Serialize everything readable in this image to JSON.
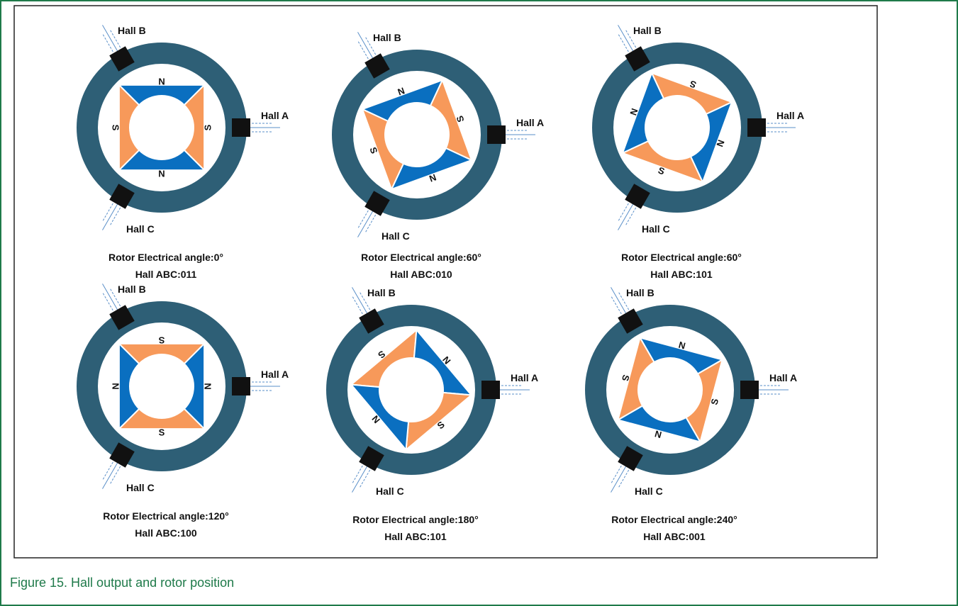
{
  "caption": "Figure 15. Hall output and rotor position",
  "panels": [
    {
      "hall_a": "Hall A",
      "hall_b": "Hall B",
      "hall_c": "Hall C",
      "angle": "Rotor Electrical angle:0°",
      "abc": "Hall ABC:011",
      "poles": [
        "N",
        "S",
        "N",
        "S"
      ]
    },
    {
      "hall_a": "Hall A",
      "hall_b": "Hall B",
      "hall_c": "Hall C",
      "angle": "Rotor Electrical angle:60°",
      "abc": "Hall ABC:010",
      "poles": [
        "N",
        "S",
        "N",
        "S"
      ]
    },
    {
      "hall_a": "Hall A",
      "hall_b": "Hall B",
      "hall_c": "Hall C",
      "angle": "Rotor Electrical angle:60°",
      "abc": "Hall ABC:101",
      "poles": [
        "S",
        "N",
        "S",
        "N"
      ]
    },
    {
      "hall_a": "Hall A",
      "hall_b": "Hall B",
      "hall_c": "Hall C",
      "angle": "Rotor Electrical angle:120°",
      "abc": "Hall ABC:100",
      "poles": [
        "S",
        "N",
        "S",
        "N"
      ]
    },
    {
      "hall_a": "Hall A",
      "hall_b": "Hall B",
      "hall_c": "Hall C",
      "angle": "Rotor Electrical angle:180°",
      "abc": "Hall ABC:101",
      "poles": [
        "S",
        "N",
        "S",
        "N"
      ]
    },
    {
      "hall_a": "Hall A",
      "hall_b": "Hall B",
      "hall_c": "Hall C",
      "angle": "Rotor Electrical angle:240°",
      "abc": "Hall ABC:001",
      "poles": [
        "N",
        "S",
        "N",
        "S"
      ]
    }
  ]
}
